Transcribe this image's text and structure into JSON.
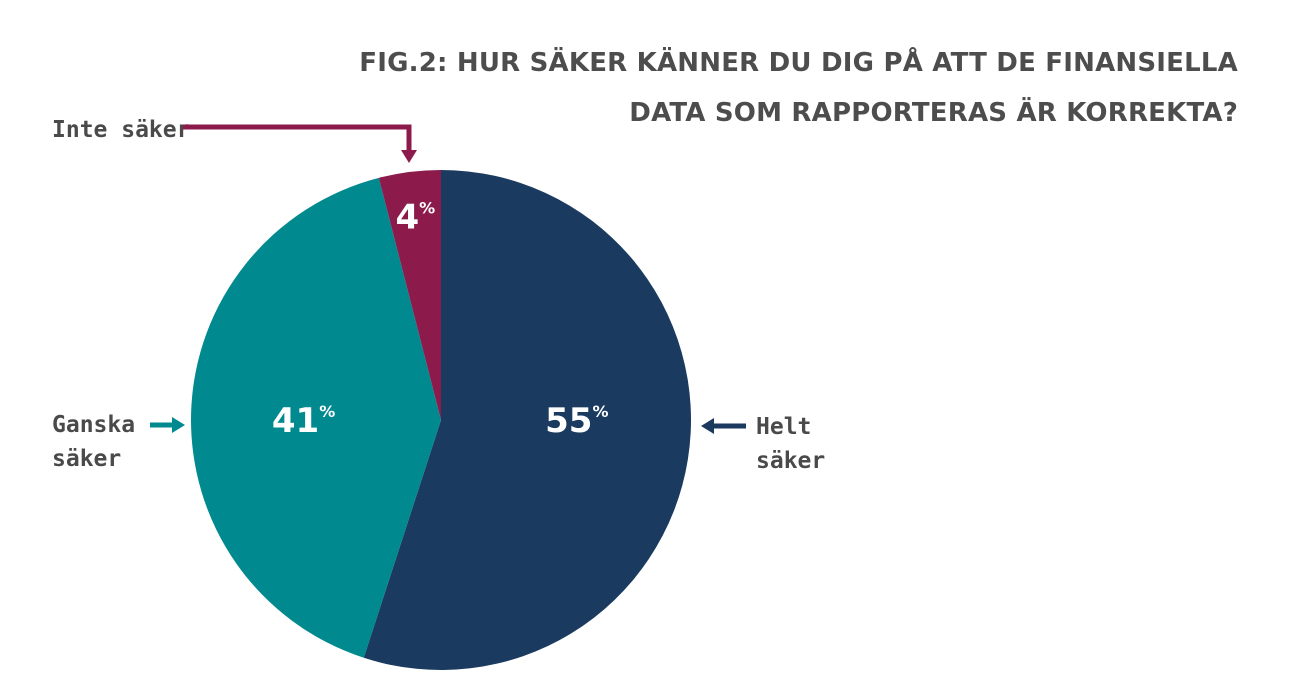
{
  "chart_data": {
    "type": "pie",
    "title_lines": [
      "FIG.2: HUR SÄKER KÄNNER DU DIG PÅ ATT DE FINANSIELLA",
      "DATA SOM RAPPORTERAS ÄR KORREKTA?"
    ],
    "percent_sign": "%",
    "slices": [
      {
        "label_lines": [
          "Helt",
          "säker"
        ],
        "value": 55,
        "display": "55",
        "color": "#1a3a60",
        "label_side": "right"
      },
      {
        "label_lines": [
          "Ganska",
          "säker"
        ],
        "value": 41,
        "display": "41",
        "color": "#008a90",
        "label_side": "left"
      },
      {
        "label_lines": [
          "Inte säker"
        ],
        "value": 4,
        "display": "4",
        "color": "#8c1a4b",
        "label_side": "top"
      }
    ]
  }
}
